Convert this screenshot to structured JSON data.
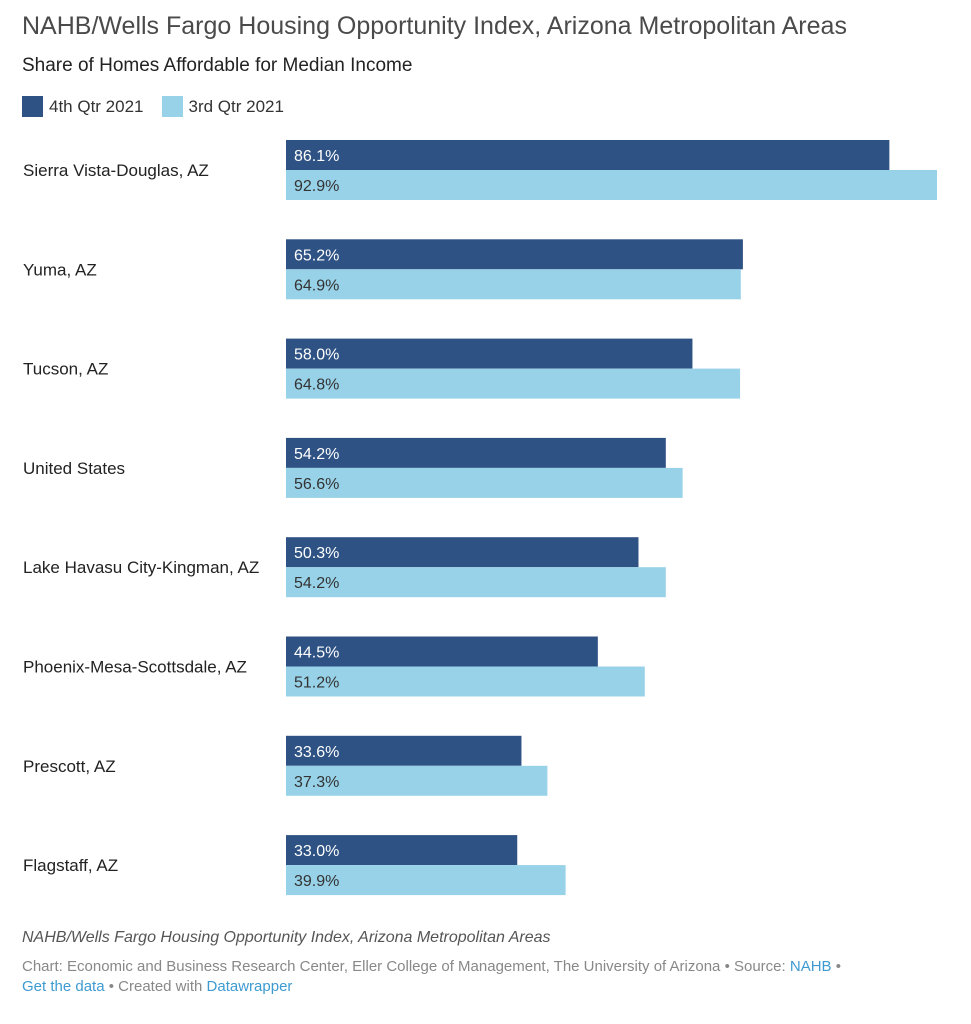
{
  "title": "NAHB/Wells Fargo Housing Opportunity Index, Arizona Metropolitan Areas",
  "subtitle": "Share of Homes Affordable for Median Income",
  "chart_data": {
    "type": "bar",
    "orientation": "horizontal",
    "categories": [
      "Sierra Vista-Douglas, AZ",
      "Yuma, AZ",
      "Tucson, AZ",
      "United States",
      "Lake Havasu City-Kingman, AZ",
      "Phoenix-Mesa-Scottsdale, AZ",
      "Prescott, AZ",
      "Flagstaff, AZ"
    ],
    "series": [
      {
        "name": "4th Qtr 2021",
        "color": "#2e5283",
        "label_color": "#ffffff",
        "values": [
          86.1,
          65.2,
          58.0,
          54.2,
          50.3,
          44.5,
          33.6,
          33.0
        ]
      },
      {
        "name": "3rd Qtr 2021",
        "color": "#98d2e8",
        "label_color": "#333333",
        "values": [
          92.9,
          64.9,
          64.8,
          56.6,
          54.2,
          51.2,
          37.3,
          39.9
        ]
      }
    ],
    "value_format": "%",
    "xlim": [
      0,
      92.9
    ],
    "grid": false,
    "legend": "top-left"
  },
  "footer": {
    "note": "NAHB/Wells Fargo Housing Opportunity Index, Arizona Metropolitan Areas",
    "chart_credit": "Chart: Economic and Business Research Center, Eller College of Management, The University of Arizona • Source: ",
    "source_link": "NAHB",
    "sep": " • ",
    "get_data": "Get the data",
    "created": " • Created with ",
    "datawrapper": "Datawrapper"
  }
}
